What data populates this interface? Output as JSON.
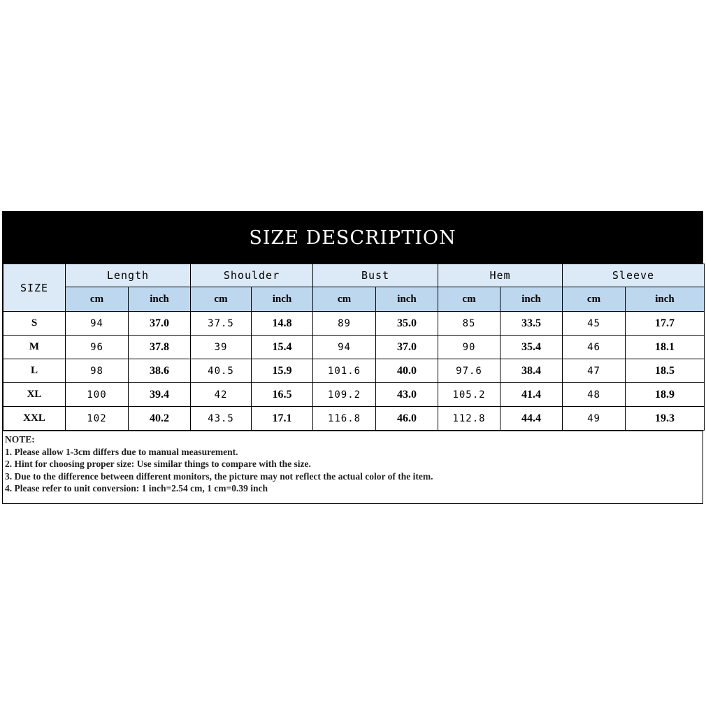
{
  "title": "SIZE DESCRIPTION",
  "size_header": "SIZE",
  "groups": [
    "Length",
    "Shoulder",
    "Bust",
    "Hem",
    "Sleeve"
  ],
  "unit_cm": "cm",
  "unit_inch": "inch",
  "rows": [
    {
      "size": "S",
      "values": [
        "94",
        "37.0",
        "37.5",
        "14.8",
        "89",
        "35.0",
        "85",
        "33.5",
        "45",
        "17.7"
      ]
    },
    {
      "size": "M",
      "values": [
        "96",
        "37.8",
        "39",
        "15.4",
        "94",
        "37.0",
        "90",
        "35.4",
        "46",
        "18.1"
      ]
    },
    {
      "size": "L",
      "values": [
        "98",
        "38.6",
        "40.5",
        "15.9",
        "101.6",
        "40.0",
        "97.6",
        "38.4",
        "47",
        "18.5"
      ]
    },
    {
      "size": "XL",
      "values": [
        "100",
        "39.4",
        "42",
        "16.5",
        "109.2",
        "43.0",
        "105.2",
        "41.4",
        "48",
        "18.9"
      ]
    },
    {
      "size": "XXL",
      "values": [
        "102",
        "40.2",
        "43.5",
        "17.1",
        "116.8",
        "46.0",
        "112.8",
        "44.4",
        "49",
        "19.3"
      ]
    }
  ],
  "notes": {
    "heading": "NOTE:",
    "items": [
      "1. Please allow 1-3cm differs due to manual measurement.",
      "2. Hint for choosing proper size: Use similar things to compare with the size.",
      "3. Due to the difference between different monitors, the picture may not reflect the actual color of the item.",
      "4. Please refer to unit conversion: 1 inch=2.54 cm, 1 cm=0.39 inch"
    ]
  }
}
